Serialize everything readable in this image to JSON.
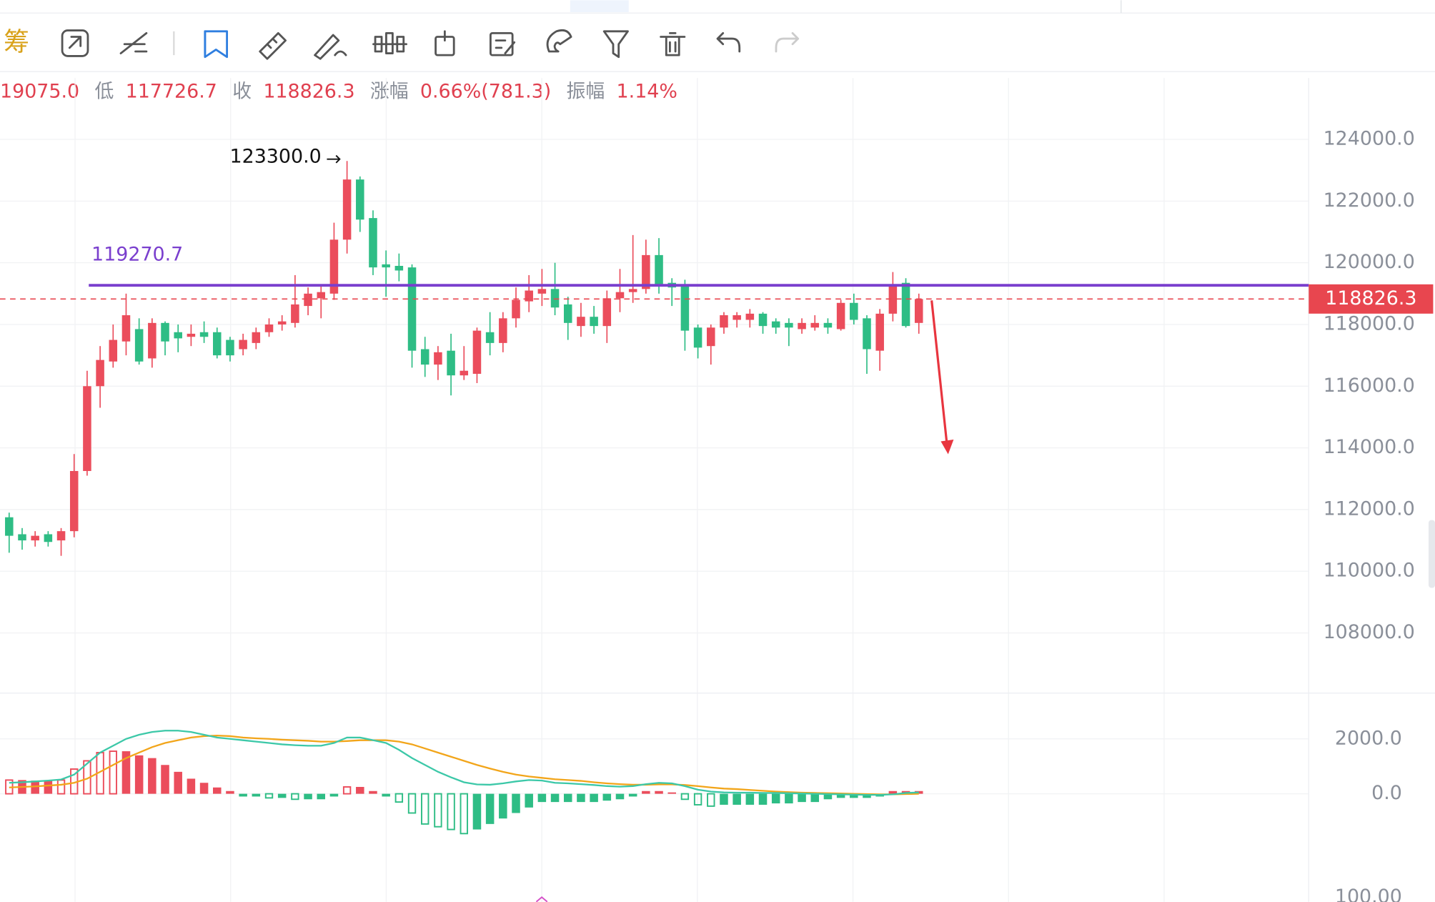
{
  "toolbar": {
    "label": "筹"
  },
  "stats": [
    "19075.0",
    "低",
    "117726.7",
    "收",
    "118826.3",
    "涨幅",
    "0.66%(781.3)",
    "振幅",
    "1.14%"
  ],
  "chart_data": {
    "type": "candlestick",
    "up_color": "#eb4d5c",
    "down_color": "#2ebd85",
    "ylim": [
      106050,
      125990
    ],
    "yticks": [
      {
        "value": 108000,
        "label": "108000.0"
      },
      {
        "value": 110000,
        "label": "110000.0"
      },
      {
        "value": 112000,
        "label": "112000.0"
      },
      {
        "value": 114000,
        "label": "114000.0"
      },
      {
        "value": 116000,
        "label": "116000.0"
      },
      {
        "value": 118000,
        "label": "118000.0"
      },
      {
        "value": 120000,
        "label": "120000.0"
      },
      {
        "value": 122000,
        "label": "122000.0"
      },
      {
        "value": 124000,
        "label": "124000.0"
      }
    ],
    "grid": true,
    "open": [
      111750,
      111200,
      111000,
      111200,
      111000,
      111300,
      113250,
      116000,
      116800,
      117450,
      117850,
      116900,
      118050,
      117750,
      117600,
      117750,
      117750,
      117500,
      117200,
      117400,
      117750,
      118000,
      118050,
      118600,
      118850,
      119000,
      120750,
      122700,
      121450,
      119950,
      119900,
      119850,
      117200,
      116700,
      117150,
      116350,
      116400,
      117750,
      117400,
      118200,
      118750,
      119000,
      119150,
      118650,
      117950,
      118250,
      117950,
      118850,
      119050,
      119150,
      120250,
      119350,
      119250,
      117900,
      117300,
      117900,
      118150,
      118150,
      118350,
      118100,
      118050,
      117850,
      117900,
      118050,
      117850,
      118700,
      118200,
      117150,
      118350,
      119350,
      118050
    ],
    "high": [
      111900,
      111400,
      111300,
      111300,
      111400,
      113800,
      116500,
      117300,
      118000,
      119000,
      118200,
      118200,
      118100,
      118000,
      118000,
      118100,
      117900,
      117600,
      117700,
      117900,
      118200,
      118300,
      119600,
      119200,
      119300,
      121300,
      123300,
      122800,
      121700,
      120400,
      120300,
      119950,
      117600,
      117300,
      117700,
      117300,
      117900,
      118400,
      118400,
      119200,
      119600,
      119800,
      120000,
      118900,
      118700,
      118600,
      119100,
      119800,
      120900,
      120750,
      120800,
      119500,
      119450,
      118000,
      118000,
      118400,
      118400,
      118500,
      118400,
      118200,
      118200,
      118200,
      118300,
      118200,
      118800,
      119000,
      118300,
      118500,
      119700,
      119500,
      119000
    ],
    "low": [
      110600,
      110700,
      110800,
      110800,
      110500,
      111100,
      113100,
      115300,
      116600,
      117000,
      116700,
      116600,
      117000,
      117100,
      117300,
      117400,
      116900,
      116800,
      117000,
      117200,
      117600,
      117800,
      117900,
      118300,
      118200,
      118800,
      120300,
      121000,
      119600,
      118900,
      119400,
      116600,
      116300,
      116200,
      115700,
      116200,
      116100,
      117000,
      117100,
      117900,
      118400,
      118600,
      118300,
      117500,
      117600,
      117700,
      117400,
      118400,
      118700,
      119000,
      119000,
      118600,
      117150,
      116900,
      116700,
      117700,
      117900,
      117900,
      117700,
      117700,
      117300,
      117700,
      117800,
      117700,
      117800,
      118000,
      116400,
      116500,
      118100,
      117900,
      117700
    ],
    "close": [
      111150,
      111000,
      111150,
      110950,
      111300,
      113250,
      116000,
      116850,
      117500,
      118300,
      116800,
      118050,
      117450,
      117550,
      117700,
      117600,
      117000,
      117000,
      117500,
      117750,
      118000,
      118100,
      118650,
      119000,
      119050,
      120750,
      122700,
      121400,
      119850,
      119850,
      119750,
      117150,
      116700,
      117100,
      116350,
      116500,
      117800,
      117400,
      118200,
      118800,
      119100,
      119150,
      118550,
      118050,
      118250,
      117950,
      118850,
      119050,
      119150,
      120250,
      119300,
      119200,
      117800,
      117250,
      117900,
      118300,
      118300,
      118350,
      117950,
      117900,
      117900,
      118050,
      118050,
      117900,
      118700,
      118150,
      117200,
      118350,
      119300,
      117950,
      118826.3
    ],
    "annotations": {
      "high_label": {
        "label": "123300.0",
        "value": 123300
      },
      "level": {
        "label": "119270.7",
        "value": 119270.7,
        "color": "#7a3fce"
      },
      "last_price": {
        "label": "118826.3",
        "value": 118826.3
      }
    },
    "macd": {
      "ylim": [
        -3100,
        3667
      ],
      "yticks": [
        {
          "value": 0,
          "label": "0.0"
        },
        {
          "value": 2000,
          "label": "2000.0"
        }
      ],
      "dif_color": "#3cc8a8",
      "dea_color": "#f2a51a",
      "histogram": [
        500,
        500,
        480,
        480,
        500,
        900,
        1200,
        1500,
        1550,
        1550,
        1400,
        1300,
        1050,
        800,
        550,
        400,
        230,
        100,
        -100,
        -100,
        -150,
        -150,
        -200,
        -200,
        -200,
        -100,
        250,
        250,
        100,
        -100,
        -300,
        -700,
        -1100,
        -1200,
        -1300,
        -1450,
        -1300,
        -1100,
        -900,
        -700,
        -500,
        -300,
        -300,
        -300,
        -300,
        -300,
        -250,
        -200,
        -100,
        100,
        100,
        50,
        -200,
        -400,
        -450,
        -400,
        -400,
        -400,
        -400,
        -350,
        -350,
        -300,
        -300,
        -200,
        -150,
        -150,
        -150,
        -100,
        100,
        100,
        100
      ],
      "dif": [
        400,
        420,
        450,
        480,
        520,
        700,
        1100,
        1500,
        1750,
        2000,
        2150,
        2250,
        2300,
        2300,
        2250,
        2150,
        2050,
        2000,
        1950,
        1900,
        1850,
        1800,
        1770,
        1750,
        1750,
        1850,
        2050,
        2050,
        1950,
        1850,
        1600,
        1300,
        1050,
        800,
        600,
        420,
        340,
        330,
        380,
        450,
        500,
        480,
        400,
        380,
        350,
        320,
        280,
        260,
        280,
        350,
        400,
        380,
        280,
        150,
        80,
        50,
        40,
        40,
        30,
        30,
        20,
        10,
        0,
        -10,
        -20,
        -30,
        -40,
        -40,
        -20,
        30,
        50
      ],
      "dea": [
        230,
        250,
        270,
        300,
        330,
        400,
        550,
        800,
        1050,
        1300,
        1500,
        1700,
        1850,
        1950,
        2050,
        2100,
        2120,
        2100,
        2050,
        2020,
        2000,
        1970,
        1950,
        1930,
        1900,
        1900,
        1920,
        1950,
        1950,
        1950,
        1900,
        1800,
        1650,
        1500,
        1350,
        1200,
        1050,
        920,
        800,
        700,
        630,
        580,
        530,
        500,
        470,
        420,
        380,
        350,
        330,
        330,
        340,
        340,
        320,
        280,
        230,
        190,
        170,
        140,
        110,
        80,
        60,
        40,
        30,
        20,
        10,
        0,
        -10,
        -20,
        -20,
        -10,
        0
      ]
    },
    "lower_pane_tick": {
      "value": 100,
      "label": "100.00"
    }
  }
}
